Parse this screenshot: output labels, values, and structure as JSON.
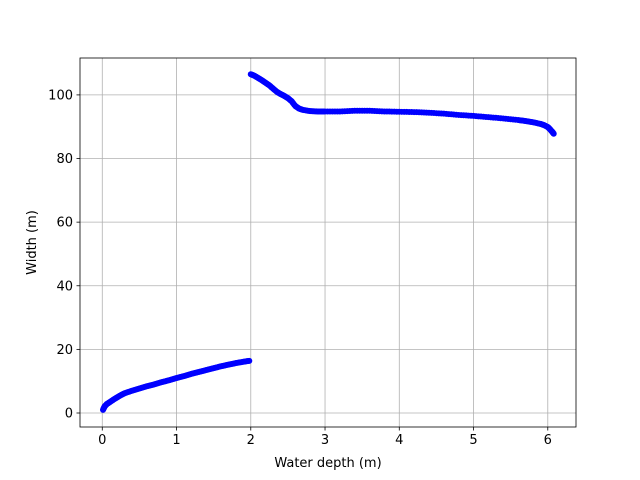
{
  "chart_data": {
    "type": "scatter",
    "title": "",
    "xlabel": "Water depth (m)",
    "ylabel": "Width (m)",
    "xlim": [
      -0.3,
      6.38
    ],
    "ylim": [
      -4.4,
      111.6
    ],
    "xticks": [
      0,
      1,
      2,
      3,
      4,
      5,
      6
    ],
    "yticks": [
      0,
      20,
      40,
      60,
      80,
      100
    ],
    "grid": true,
    "marker_color": "#0000ff",
    "series": [
      {
        "points": [
          [
            0.01,
            1.0
          ],
          [
            0.03,
            2.0
          ],
          [
            0.06,
            2.8
          ],
          [
            0.1,
            3.4
          ],
          [
            0.15,
            4.2
          ],
          [
            0.2,
            4.9
          ],
          [
            0.25,
            5.6
          ],
          [
            0.3,
            6.2
          ],
          [
            0.4,
            7.0
          ],
          [
            0.5,
            7.7
          ],
          [
            0.6,
            8.4
          ],
          [
            0.7,
            9.0
          ],
          [
            0.8,
            9.7
          ],
          [
            0.9,
            10.3
          ],
          [
            1.0,
            11.0
          ],
          [
            1.1,
            11.6
          ],
          [
            1.2,
            12.3
          ],
          [
            1.3,
            12.9
          ],
          [
            1.4,
            13.5
          ],
          [
            1.5,
            14.1
          ],
          [
            1.6,
            14.7
          ],
          [
            1.7,
            15.2
          ],
          [
            1.8,
            15.7
          ],
          [
            1.9,
            16.1
          ],
          [
            1.98,
            16.4
          ]
        ]
      },
      {
        "points": [
          [
            2.0,
            106.5
          ],
          [
            2.05,
            106.0
          ],
          [
            2.1,
            105.3
          ],
          [
            2.15,
            104.6
          ],
          [
            2.2,
            103.8
          ],
          [
            2.25,
            103.0
          ],
          [
            2.3,
            102.0
          ],
          [
            2.35,
            101.0
          ],
          [
            2.4,
            100.3
          ],
          [
            2.45,
            99.7
          ],
          [
            2.5,
            99.0
          ],
          [
            2.55,
            98.0
          ],
          [
            2.6,
            96.5
          ],
          [
            2.65,
            95.7
          ],
          [
            2.7,
            95.3
          ],
          [
            2.8,
            94.9
          ],
          [
            2.9,
            94.8
          ],
          [
            3.0,
            94.8
          ],
          [
            3.2,
            94.8
          ],
          [
            3.4,
            95.0
          ],
          [
            3.6,
            95.0
          ],
          [
            3.8,
            94.8
          ],
          [
            4.0,
            94.7
          ],
          [
            4.2,
            94.6
          ],
          [
            4.4,
            94.4
          ],
          [
            4.6,
            94.1
          ],
          [
            4.8,
            93.7
          ],
          [
            5.0,
            93.4
          ],
          [
            5.2,
            93.0
          ],
          [
            5.4,
            92.6
          ],
          [
            5.6,
            92.1
          ],
          [
            5.7,
            91.8
          ],
          [
            5.8,
            91.4
          ],
          [
            5.9,
            90.9
          ],
          [
            5.95,
            90.5
          ],
          [
            6.0,
            89.9
          ],
          [
            6.03,
            89.2
          ],
          [
            6.06,
            88.4
          ],
          [
            6.08,
            87.8
          ]
        ]
      }
    ]
  }
}
